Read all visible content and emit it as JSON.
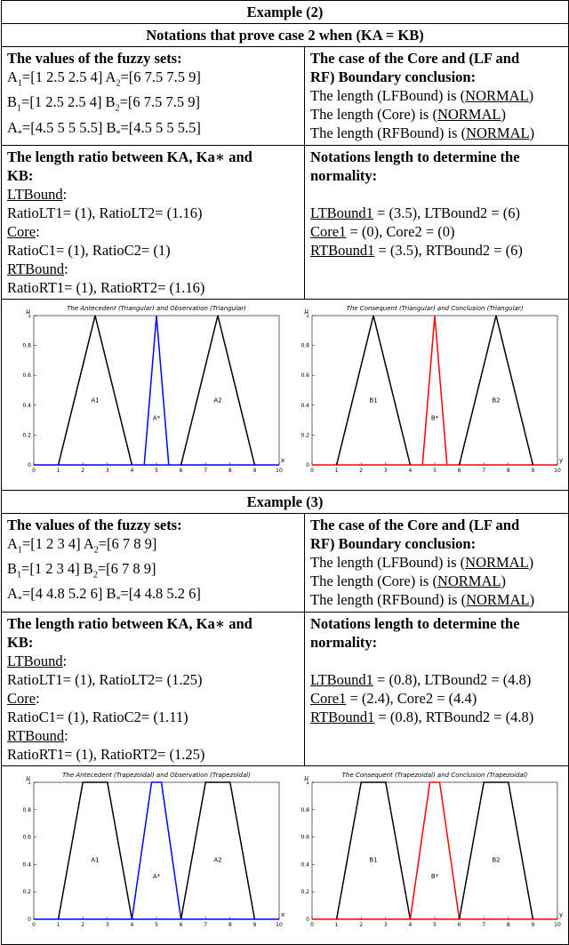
{
  "ex2": {
    "title": "Example (2)",
    "subtitle": "Notations that prove case 2 when (KA = KB)",
    "values_head": "The values of the fuzzy sets:",
    "lines": [
      [
        "A",
        "1",
        "=[1 2.5 2.5 4] A",
        "2",
        "=[6 7.5 7.5 9]"
      ],
      [
        "B",
        "1",
        "=[1 2.5 2.5 4] B",
        "2",
        "=[6 7.5 7.5 9]"
      ],
      [
        "A",
        "*",
        "=[4.5 5 5 5.5] B",
        "*",
        "=[4.5 5 5 5.5]"
      ]
    ],
    "case_head1": "The case of the Core and (LF and",
    "case_head2": "RF) Boundary conclusion:",
    "case_lines": [
      {
        "pre": "The length (LFBound) is (",
        "u": "NORMAL",
        "post": ")"
      },
      {
        "pre": "The length (Core) is (",
        "u": "NORMAL",
        "post": ")"
      },
      {
        "pre": "The length (RFBound) is (",
        "u": "NORMAL",
        "post": ")"
      }
    ],
    "ratio_head1": "The length ratio between KA, Ka∗ and",
    "ratio_head2": "KB:",
    "lt": "LTBound",
    "lt_colon": ":",
    "lt_val": "RatioLT1= (1), RatioLT2= (1.16)",
    "core": "Core",
    "core_colon": ":",
    "core_val": "RatioC1= (1), RatioC2= (1)",
    "rt": "RTBound",
    "rt_colon": ":",
    "rt_val": "RatioRT1= (1), RatioRT2= (1.16)",
    "norm_head1": "Notations length to determine the",
    "norm_head2": "normality:",
    "n1_u": "LTBound1",
    "n1_rest": " = (3.5), LTBound2 = (6)",
    "n2_u": "Core1",
    "n2_rest": " = (0), Core2 = (0)",
    "n3_u": "RTBound1",
    "n3_rest": " = (3.5), RTBound2 = (6)"
  },
  "ex3": {
    "title": "Example (3)",
    "values_head": "The values of the fuzzy sets:",
    "lines": [
      [
        "A",
        "1",
        "=[1 2 3 4] A",
        "2",
        "=[6 7 8 9]"
      ],
      [
        "B",
        "1",
        "=[1 2 3 4] B",
        "2",
        "=[6 7 8 9]"
      ],
      [
        "A",
        "*",
        "=[4 4.8 5.2 6] B",
        "*",
        "=[4 4.8 5.2 6]"
      ]
    ],
    "case_head1": "The case of the Core and (LF and",
    "case_head2": "RF) Boundary conclusion:",
    "case_lines": [
      {
        "pre": "The length (LFBound) is (",
        "u": "NORMAL",
        "post": ")"
      },
      {
        "pre": "The length (Core) is (",
        "u": "NORMAL",
        "post": ")"
      },
      {
        "pre": "The length (RFBound) is (",
        "u": "NORMAL",
        "post": ")"
      }
    ],
    "ratio_head1": "The length ratio between KA, Ka∗ and",
    "ratio_head2": "KB:",
    "lt": "LTBound",
    "lt_colon": ":",
    "lt_val": "RatioLT1= (1), RatioLT2= (1.25)",
    "core": "Core",
    "core_colon": ":",
    "core_val": "RatioC1= (1), RatioC2= (1.11)",
    "rt": "RTBound",
    "rt_colon": ":",
    "rt_val": "RatioRT1= (1), RatioRT2= (1.25)",
    "norm_head1": "Notations length to determine the",
    "norm_head2": "normality:",
    "n1_u": "LTBound1",
    "n1_rest": " = (0.8), LTBound2 = (4.8)",
    "n2_u": "Core1",
    "n2_rest": " = (2.4), Core2 = (4.4)",
    "n3_u": "RTBound1",
    "n3_rest": " = (0.8), RTBound2 = (4.8)"
  },
  "chart_data": [
    {
      "type": "line",
      "title": "The Antecedent (Triangular) and Observation (Triangular)",
      "xlabel": "x₁",
      "ylabel": "μ",
      "xlim": [
        0,
        10
      ],
      "ylim": [
        0,
        1
      ],
      "xticks": [
        "0",
        "1",
        "2",
        "3",
        "4",
        "5",
        "6",
        "7",
        "8",
        "9",
        "10"
      ],
      "yticks": [
        "0",
        "0.2",
        "0.4",
        "0.6",
        "0.8",
        "1"
      ],
      "series": [
        {
          "name": "A1",
          "color": "#000000",
          "x": [
            1,
            2.5,
            4
          ],
          "y": [
            0,
            1,
            0
          ]
        },
        {
          "name": "A*",
          "color": "#0000ff",
          "x": [
            4.5,
            5,
            5.5
          ],
          "y": [
            0,
            1,
            0
          ]
        },
        {
          "name": "A2",
          "color": "#000000",
          "x": [
            6,
            7.5,
            9
          ],
          "y": [
            0,
            1,
            0
          ]
        }
      ]
    },
    {
      "type": "line",
      "title": "The Consequent (Triangular) and Conclusion (Triangular)",
      "xlabel": "y₁",
      "ylabel": "μ",
      "xlim": [
        0,
        10
      ],
      "ylim": [
        0,
        1
      ],
      "xticks": [
        "0",
        "1",
        "2",
        "3",
        "4",
        "5",
        "6",
        "7",
        "8",
        "9",
        "10"
      ],
      "yticks": [
        "0",
        "0.2",
        "0.4",
        "0.6",
        "0.8",
        "1"
      ],
      "series": [
        {
          "name": "B1",
          "color": "#000000",
          "x": [
            1,
            2.5,
            4
          ],
          "y": [
            0,
            1,
            0
          ]
        },
        {
          "name": "B*",
          "color": "#ff0000",
          "x": [
            4.5,
            5,
            5.5
          ],
          "y": [
            0,
            1,
            0
          ]
        },
        {
          "name": "B2",
          "color": "#000000",
          "x": [
            6,
            7.5,
            9
          ],
          "y": [
            0,
            1,
            0
          ]
        }
      ]
    },
    {
      "type": "line",
      "title": "The Antecedent (Trapezoidal) and Observation (Trapezoidal)",
      "xlabel": "x₁",
      "ylabel": "μ",
      "xlim": [
        0,
        10
      ],
      "ylim": [
        0,
        1
      ],
      "xticks": [
        "0",
        "1",
        "2",
        "3",
        "4",
        "5",
        "6",
        "7",
        "8",
        "9",
        "10"
      ],
      "yticks": [
        "0",
        "0.2",
        "0.4",
        "0.6",
        "0.8",
        "1"
      ],
      "series": [
        {
          "name": "A1",
          "color": "#000000",
          "x": [
            1,
            2,
            3,
            4
          ],
          "y": [
            0,
            1,
            1,
            0
          ]
        },
        {
          "name": "A*",
          "color": "#0000ff",
          "x": [
            4,
            4.8,
            5.2,
            6
          ],
          "y": [
            0,
            1,
            1,
            0
          ]
        },
        {
          "name": "A2",
          "color": "#000000",
          "x": [
            6,
            7,
            8,
            9
          ],
          "y": [
            0,
            1,
            1,
            0
          ]
        }
      ]
    },
    {
      "type": "line",
      "title": "The Consequent (Trapezoidal) and Conclusion (Trapezoidal)",
      "xlabel": "y₁",
      "ylabel": "μ",
      "xlim": [
        0,
        10
      ],
      "ylim": [
        0,
        1
      ],
      "xticks": [
        "0",
        "1",
        "2",
        "3",
        "4",
        "5",
        "6",
        "7",
        "8",
        "9",
        "10"
      ],
      "yticks": [
        "0",
        "0.2",
        "0.4",
        "0.6",
        "0.8",
        "1"
      ],
      "series": [
        {
          "name": "B1",
          "color": "#000000",
          "x": [
            1,
            2,
            3,
            4
          ],
          "y": [
            0,
            1,
            1,
            0
          ]
        },
        {
          "name": "B*",
          "color": "#ff0000",
          "x": [
            4,
            4.8,
            5.2,
            6
          ],
          "y": [
            0,
            1,
            1,
            0
          ]
        },
        {
          "name": "B2",
          "color": "#000000",
          "x": [
            6,
            7,
            8,
            9
          ],
          "y": [
            0,
            1,
            1,
            0
          ]
        }
      ]
    }
  ]
}
